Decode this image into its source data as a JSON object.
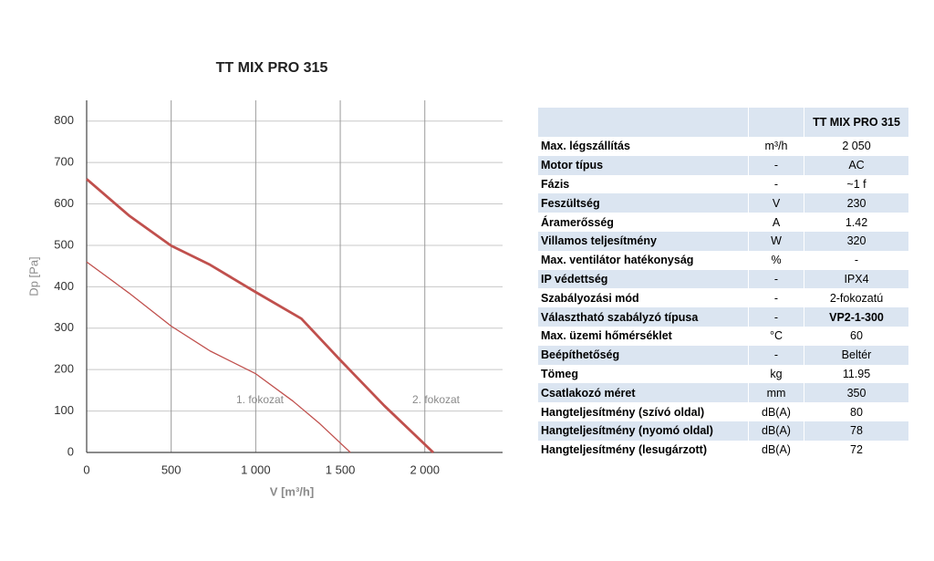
{
  "chart_data": {
    "type": "line",
    "title": "TT MIX PRO 315",
    "x_label": "V [m³/h]",
    "y_label": "Dp [Pa]",
    "series": [
      {
        "name": "1. fokozat",
        "color": "#c0504d",
        "x": [
          0,
          250,
          500,
          730,
          1000,
          1220,
          1380,
          1560
        ],
        "values": [
          460,
          385,
          305,
          245,
          190,
          124,
          69,
          0
        ]
      },
      {
        "name": "2. fokozat",
        "color": "#c0504d",
        "x": [
          0,
          250,
          500,
          730,
          1000,
          1270,
          1500,
          1760,
          2050
        ],
        "values": [
          660,
          572,
          499,
          453,
          387,
          323,
          223,
          113,
          0
        ]
      }
    ],
    "xlim": [
      0,
      2460
    ],
    "ylim": [
      0,
      850
    ],
    "xticks": [
      0,
      500,
      {
        "value": 1000,
        "label": "1 000"
      },
      {
        "value": 1500,
        "label": "1 500"
      },
      {
        "value": 2000,
        "label": "2 000"
      }
    ],
    "yticks": [
      0,
      100,
      200,
      300,
      400,
      500,
      600,
      700,
      800
    ],
    "grid": true
  },
  "table": {
    "header": "TT MIX PRO 315",
    "rows": [
      [
        "Max. légszállítás",
        "m³/h",
        "2 050"
      ],
      [
        "Motor típus",
        "-",
        "AC"
      ],
      [
        "Fázis",
        "-",
        "~1 f"
      ],
      [
        "Feszültség",
        "V",
        "230"
      ],
      [
        "Áramerősség",
        "A",
        "1.42"
      ],
      [
        "Villamos teljesítmény",
        "W",
        "320"
      ],
      [
        "Max. ventilátor hatékonyság",
        "%",
        "-"
      ],
      [
        "IP védettség",
        "-",
        "IPX4"
      ],
      [
        "Szabályozási mód",
        "-",
        "2-fokozatú"
      ],
      [
        "Választható szabályzó típusa",
        "-",
        "VP2-1-300"
      ],
      [
        "Max. üzemi hőmérséklet",
        "°C",
        "60"
      ],
      [
        "Beépíthetőség",
        "-",
        "Beltér"
      ],
      [
        "Tömeg",
        "kg",
        "11.95"
      ],
      [
        "Csatlakozó méret",
        "mm",
        "350"
      ],
      [
        "Hangteljesítmény (szívó oldal)",
        "dB(A)",
        "80"
      ],
      [
        "Hangteljesítmény (nyomó oldal)",
        "dB(A)",
        "78"
      ],
      [
        "Hangteljesítmény (lesugárzott)",
        "dB(A)",
        "72"
      ]
    ]
  }
}
